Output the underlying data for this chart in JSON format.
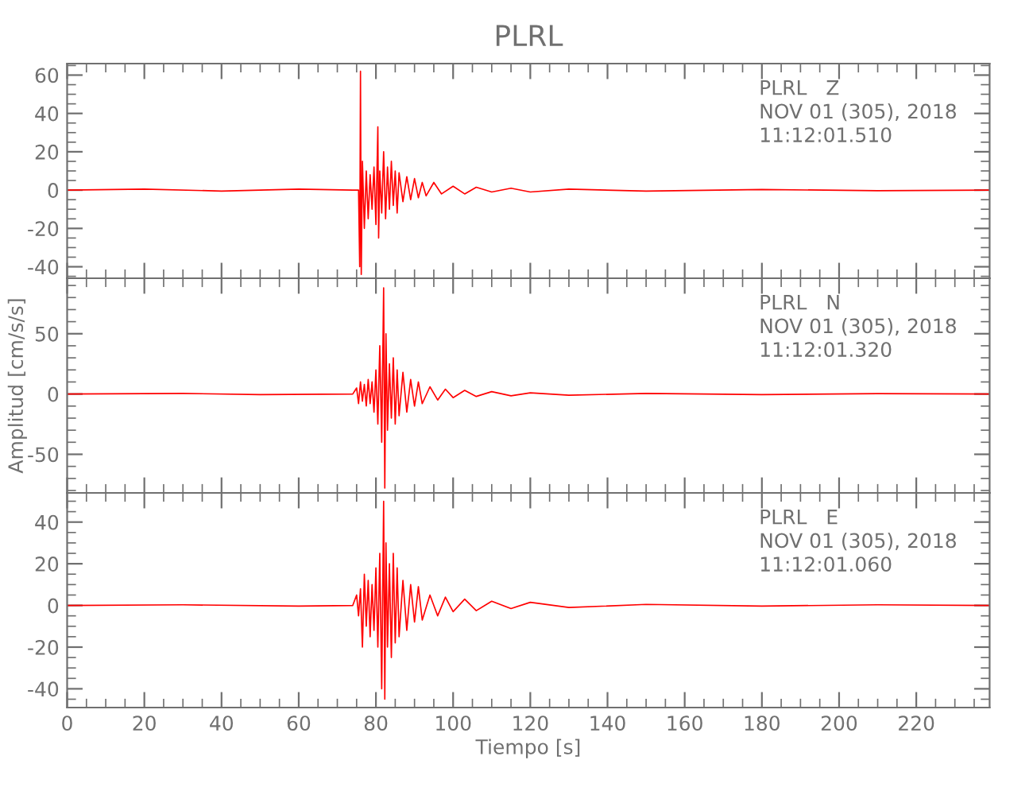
{
  "chart_data": [
    {
      "type": "line",
      "title": "PLRL",
      "annotations": [
        "PLRL   Z",
        "NOV 01 (305), 2018",
        "11:12:01.510"
      ],
      "tick_labels": "y",
      "xlim": [
        0,
        239
      ],
      "xticks": [
        0,
        20,
        40,
        60,
        80,
        100,
        120,
        140,
        160,
        180,
        200,
        220
      ],
      "ylim": [
        -46,
        66
      ],
      "yticks": [
        -40,
        -20,
        0,
        20,
        40,
        60
      ],
      "series": [
        {
          "color": "#ff0000",
          "x": [
            0,
            20,
            40,
            60,
            74,
            75.5,
            75.8,
            76.0,
            76.2,
            76.5,
            77,
            77.5,
            78,
            78.5,
            79,
            79.5,
            80,
            80.5,
            80.7,
            81,
            81.5,
            82,
            82.5,
            83,
            83.5,
            84,
            84.5,
            85,
            85.5,
            86,
            87,
            88,
            89,
            90,
            91,
            92,
            93,
            95,
            97,
            100,
            103,
            106,
            110,
            115,
            120,
            130,
            150,
            180,
            210,
            239
          ],
          "values": [
            0,
            0.5,
            -0.5,
            0.5,
            0,
            0,
            -40,
            62,
            -44,
            15,
            -20,
            10,
            -15,
            8,
            -10,
            12,
            -18,
            33,
            -25,
            10,
            -12,
            20,
            -15,
            12,
            -10,
            15,
            -8,
            10,
            -12,
            9,
            -6,
            7,
            -5,
            6,
            -4,
            4,
            -3,
            4,
            -2,
            2,
            -2,
            1.5,
            -1,
            1,
            -1,
            0.5,
            -0.5,
            0.3,
            -0.3,
            0
          ]
        }
      ]
    },
    {
      "type": "line",
      "ylabel": "Amplitud [cm/s/s]",
      "annotations": [
        "PLRL   N",
        "NOV 01 (305), 2018",
        "11:12:01.320"
      ],
      "tick_labels": "y",
      "xlim": [
        0,
        239
      ],
      "xticks": [
        0,
        20,
        40,
        60,
        80,
        100,
        120,
        140,
        160,
        180,
        200,
        220
      ],
      "ylim": [
        -82,
        96
      ],
      "yticks": [
        -50,
        0,
        50
      ],
      "series": [
        {
          "color": "#ff0000",
          "x": [
            0,
            30,
            50,
            74,
            75,
            75.5,
            76,
            76.5,
            77,
            77.5,
            78,
            78.5,
            79,
            79.5,
            80,
            80.5,
            81,
            81.5,
            82,
            82.3,
            82.6,
            83,
            83.5,
            84,
            84.5,
            85,
            85.5,
            86,
            87,
            88,
            89,
            90,
            91,
            92,
            94,
            96,
            98,
            100,
            103,
            106,
            110,
            115,
            120,
            130,
            150,
            180,
            210,
            239
          ],
          "values": [
            0,
            0.5,
            -0.5,
            0,
            5,
            -8,
            10,
            -6,
            8,
            -10,
            12,
            -8,
            10,
            -15,
            20,
            -25,
            40,
            -40,
            88,
            -78,
            50,
            -30,
            25,
            -20,
            30,
            -25,
            20,
            -18,
            18,
            -15,
            12,
            -10,
            10,
            -8,
            6,
            -5,
            4,
            -3,
            3,
            -2,
            2,
            -1.5,
            1,
            -1,
            0.5,
            -0.5,
            0.3,
            0
          ]
        }
      ]
    },
    {
      "type": "line",
      "xlabel": "Tiempo [s]",
      "annotations": [
        "PLRL   E",
        "NOV 01 (305), 2018",
        "11:12:01.060"
      ],
      "xlim": [
        0,
        239
      ],
      "xticks": [
        0,
        20,
        40,
        60,
        80,
        100,
        120,
        140,
        160,
        180,
        200,
        220
      ],
      "ylim": [
        -49,
        54
      ],
      "yticks": [
        -40,
        -20,
        0,
        20,
        40
      ],
      "series": [
        {
          "color": "#ff0000",
          "x": [
            0,
            30,
            60,
            74,
            75,
            75.5,
            76,
            76.5,
            77,
            77.5,
            78,
            78.5,
            79,
            79.5,
            80,
            80.5,
            81,
            81.5,
            82,
            82.3,
            82.6,
            83,
            83.5,
            84,
            84.5,
            85,
            85.5,
            86,
            87,
            88,
            89,
            90,
            91,
            92,
            94,
            96,
            98,
            100,
            103,
            106,
            110,
            115,
            120,
            130,
            150,
            180,
            210,
            239
          ],
          "values": [
            0,
            0.3,
            -0.3,
            0,
            5,
            -5,
            8,
            -20,
            15,
            -10,
            12,
            -15,
            10,
            -12,
            18,
            -20,
            25,
            -40,
            50,
            -45,
            30,
            -20,
            20,
            -25,
            25,
            -18,
            18,
            -15,
            12,
            -12,
            10,
            -8,
            9,
            -7,
            5,
            -5,
            4,
            -3,
            3,
            -2.5,
            2,
            -1.5,
            1.5,
            -1,
            0.5,
            -0.3,
            0.3,
            0
          ]
        }
      ]
    }
  ]
}
